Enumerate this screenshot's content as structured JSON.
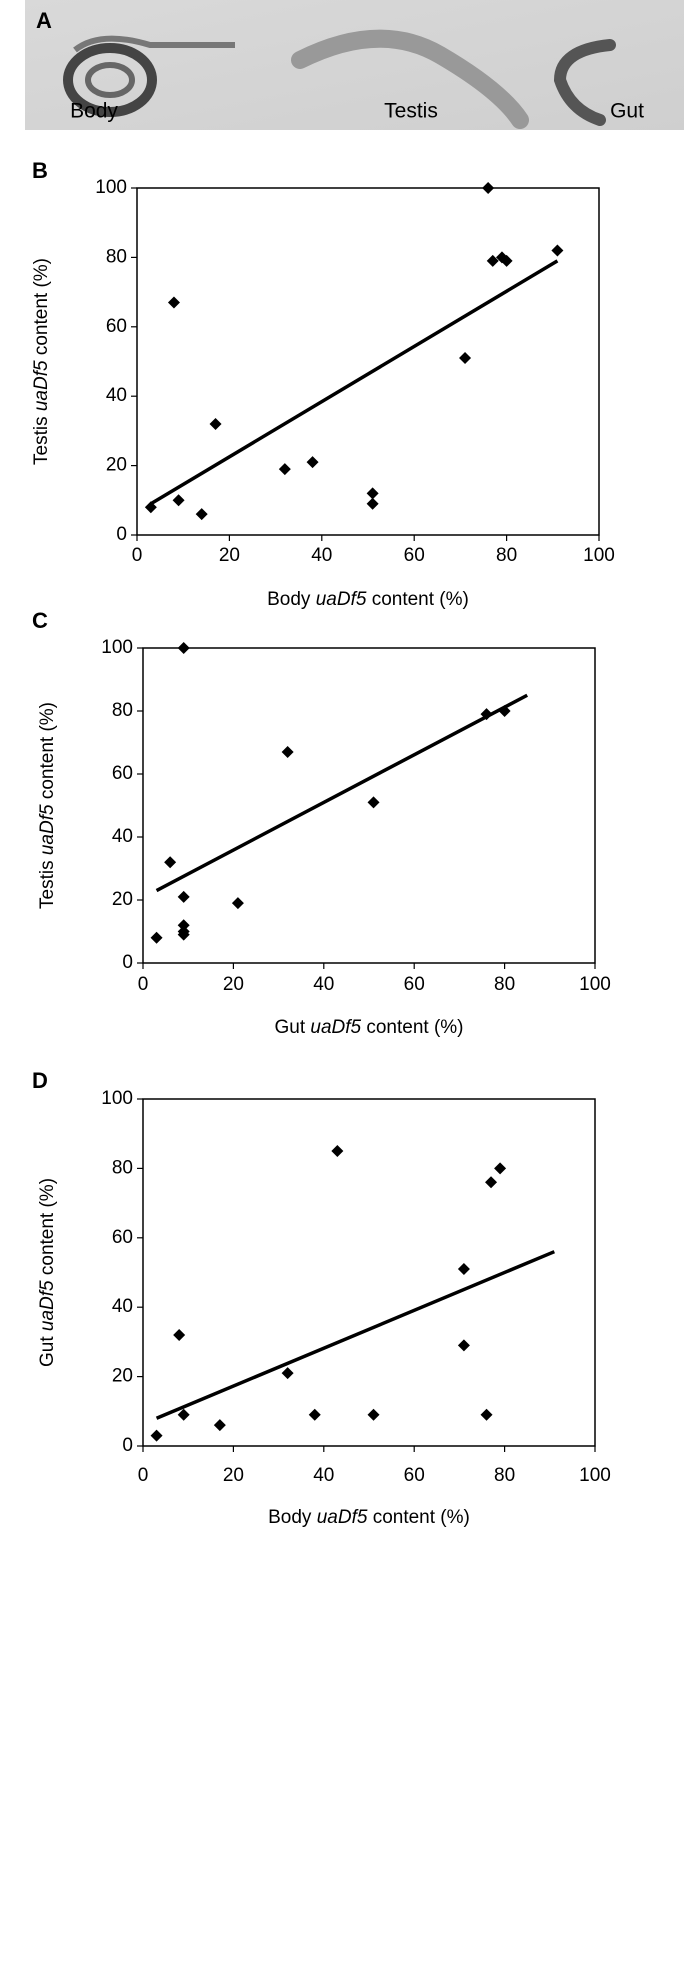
{
  "panel_a": {
    "label": "A",
    "captions": [
      "Body",
      "Testis",
      "Gut"
    ]
  },
  "chart_data": [
    {
      "type": "scatter",
      "panel": "B",
      "x_label": [
        "Body ",
        "uaDf5",
        " content (%)"
      ],
      "y_label": [
        "Testis ",
        "uaDf5",
        " content (%)"
      ],
      "x": [
        3,
        9,
        8,
        14,
        17,
        32,
        38,
        51,
        51,
        71,
        76,
        77,
        79,
        80,
        91
      ],
      "y": [
        8,
        10,
        67,
        6,
        32,
        19,
        21,
        12,
        9,
        51,
        100,
        79,
        80,
        79,
        82
      ],
      "trendline": {
        "x": [
          3,
          91
        ],
        "y": [
          9,
          79
        ]
      },
      "color": "#000000",
      "xlim": [
        0,
        100
      ],
      "xticks": [
        0,
        20,
        40,
        60,
        80,
        100
      ],
      "ylim": [
        0,
        100
      ],
      "yticks": [
        0,
        20,
        40,
        60,
        80,
        100
      ]
    },
    {
      "type": "scatter",
      "panel": "C",
      "x_label": [
        "Gut ",
        "uaDf5",
        " content (%)"
      ],
      "y_label": [
        "Testis ",
        "uaDf5",
        " content (%)"
      ],
      "x": [
        3,
        6,
        9,
        9,
        9,
        9,
        9,
        21,
        32,
        51,
        76,
        80
      ],
      "y": [
        8,
        32,
        100,
        21,
        12,
        10,
        9,
        19,
        67,
        51,
        79,
        80
      ],
      "trendline": {
        "x": [
          3,
          85
        ],
        "y": [
          23,
          85
        ]
      },
      "color": "#000000",
      "xlim": [
        0,
        100
      ],
      "xticks": [
        0,
        20,
        40,
        60,
        80,
        100
      ],
      "ylim": [
        0,
        100
      ],
      "yticks": [
        0,
        20,
        40,
        60,
        80,
        100
      ]
    },
    {
      "type": "scatter",
      "panel": "D",
      "x_label": [
        "Body ",
        "uaDf5",
        " content (%)"
      ],
      "y_label": [
        "Gut ",
        "uaDf5",
        " content (%)"
      ],
      "x": [
        3,
        8,
        9,
        17,
        32,
        38,
        43,
        51,
        71,
        71,
        76,
        77,
        79
      ],
      "y": [
        3,
        32,
        9,
        6,
        21,
        9,
        85,
        9,
        51,
        29,
        9,
        76,
        80
      ],
      "trendline": {
        "x": [
          3,
          91
        ],
        "y": [
          8,
          56
        ]
      },
      "color": "#000000",
      "xlim": [
        0,
        100
      ],
      "xticks": [
        0,
        20,
        40,
        60,
        80,
        100
      ],
      "ylim": [
        0,
        100
      ],
      "yticks": [
        0,
        20,
        40,
        60,
        80,
        100
      ]
    }
  ]
}
